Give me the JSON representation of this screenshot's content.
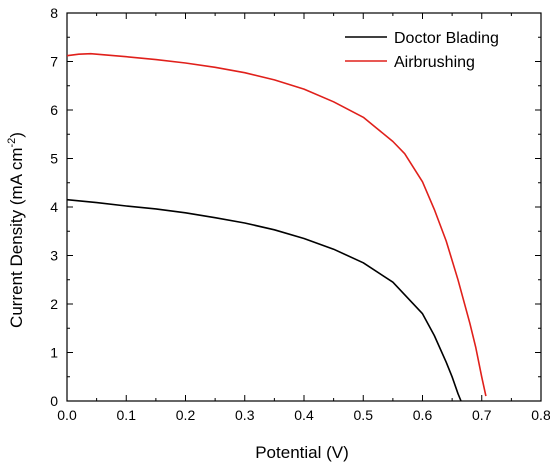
{
  "chart_data": {
    "type": "line",
    "xlabel": "Potential (V)",
    "ylabel": {
      "main": "Current Density (mA cm",
      "superscript": "-2",
      "close": ")"
    },
    "xlim": [
      0.0,
      0.8
    ],
    "ylim": [
      0,
      8
    ],
    "xticks": [
      "0.0",
      "0.1",
      "0.2",
      "0.3",
      "0.4",
      "0.5",
      "0.6",
      "0.7",
      "0.8"
    ],
    "yticks": [
      "0",
      "1",
      "2",
      "3",
      "4",
      "5",
      "6",
      "7",
      "8"
    ],
    "grid": false,
    "legend_position": "top-right",
    "series": [
      {
        "name": "Doctor Blading",
        "color": "#000000",
        "x": [
          0.0,
          0.05,
          0.1,
          0.15,
          0.2,
          0.25,
          0.3,
          0.35,
          0.4,
          0.45,
          0.5,
          0.55,
          0.6,
          0.62,
          0.64,
          0.65,
          0.66,
          0.665
        ],
        "y": [
          4.15,
          4.09,
          4.02,
          3.96,
          3.88,
          3.78,
          3.67,
          3.53,
          3.35,
          3.13,
          2.85,
          2.45,
          1.8,
          1.35,
          0.8,
          0.5,
          0.15,
          0.0
        ]
      },
      {
        "name": "Airbrushing",
        "color": "#e0201b",
        "x": [
          0.0,
          0.02,
          0.04,
          0.1,
          0.15,
          0.2,
          0.25,
          0.3,
          0.35,
          0.4,
          0.45,
          0.5,
          0.55,
          0.57,
          0.6,
          0.62,
          0.64,
          0.66,
          0.68,
          0.69,
          0.7,
          0.707
        ],
        "y": [
          7.12,
          7.15,
          7.16,
          7.1,
          7.04,
          6.97,
          6.88,
          6.77,
          6.62,
          6.43,
          6.17,
          5.85,
          5.35,
          5.1,
          4.52,
          3.95,
          3.3,
          2.5,
          1.6,
          1.1,
          0.5,
          0.1
        ]
      }
    ]
  }
}
